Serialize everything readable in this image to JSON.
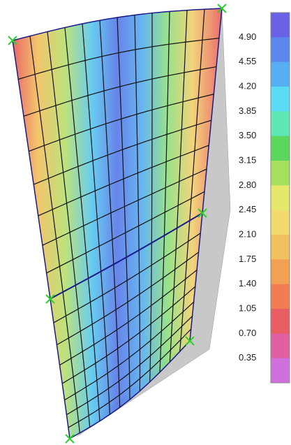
{
  "legend": {
    "labels": [
      "4.90",
      "4.55",
      "4.20",
      "3.85",
      "3.50",
      "3.15",
      "2.80",
      "2.45",
      "2.10",
      "1.75",
      "1.40",
      "1.05",
      "0.70",
      "0.35"
    ]
  }
}
